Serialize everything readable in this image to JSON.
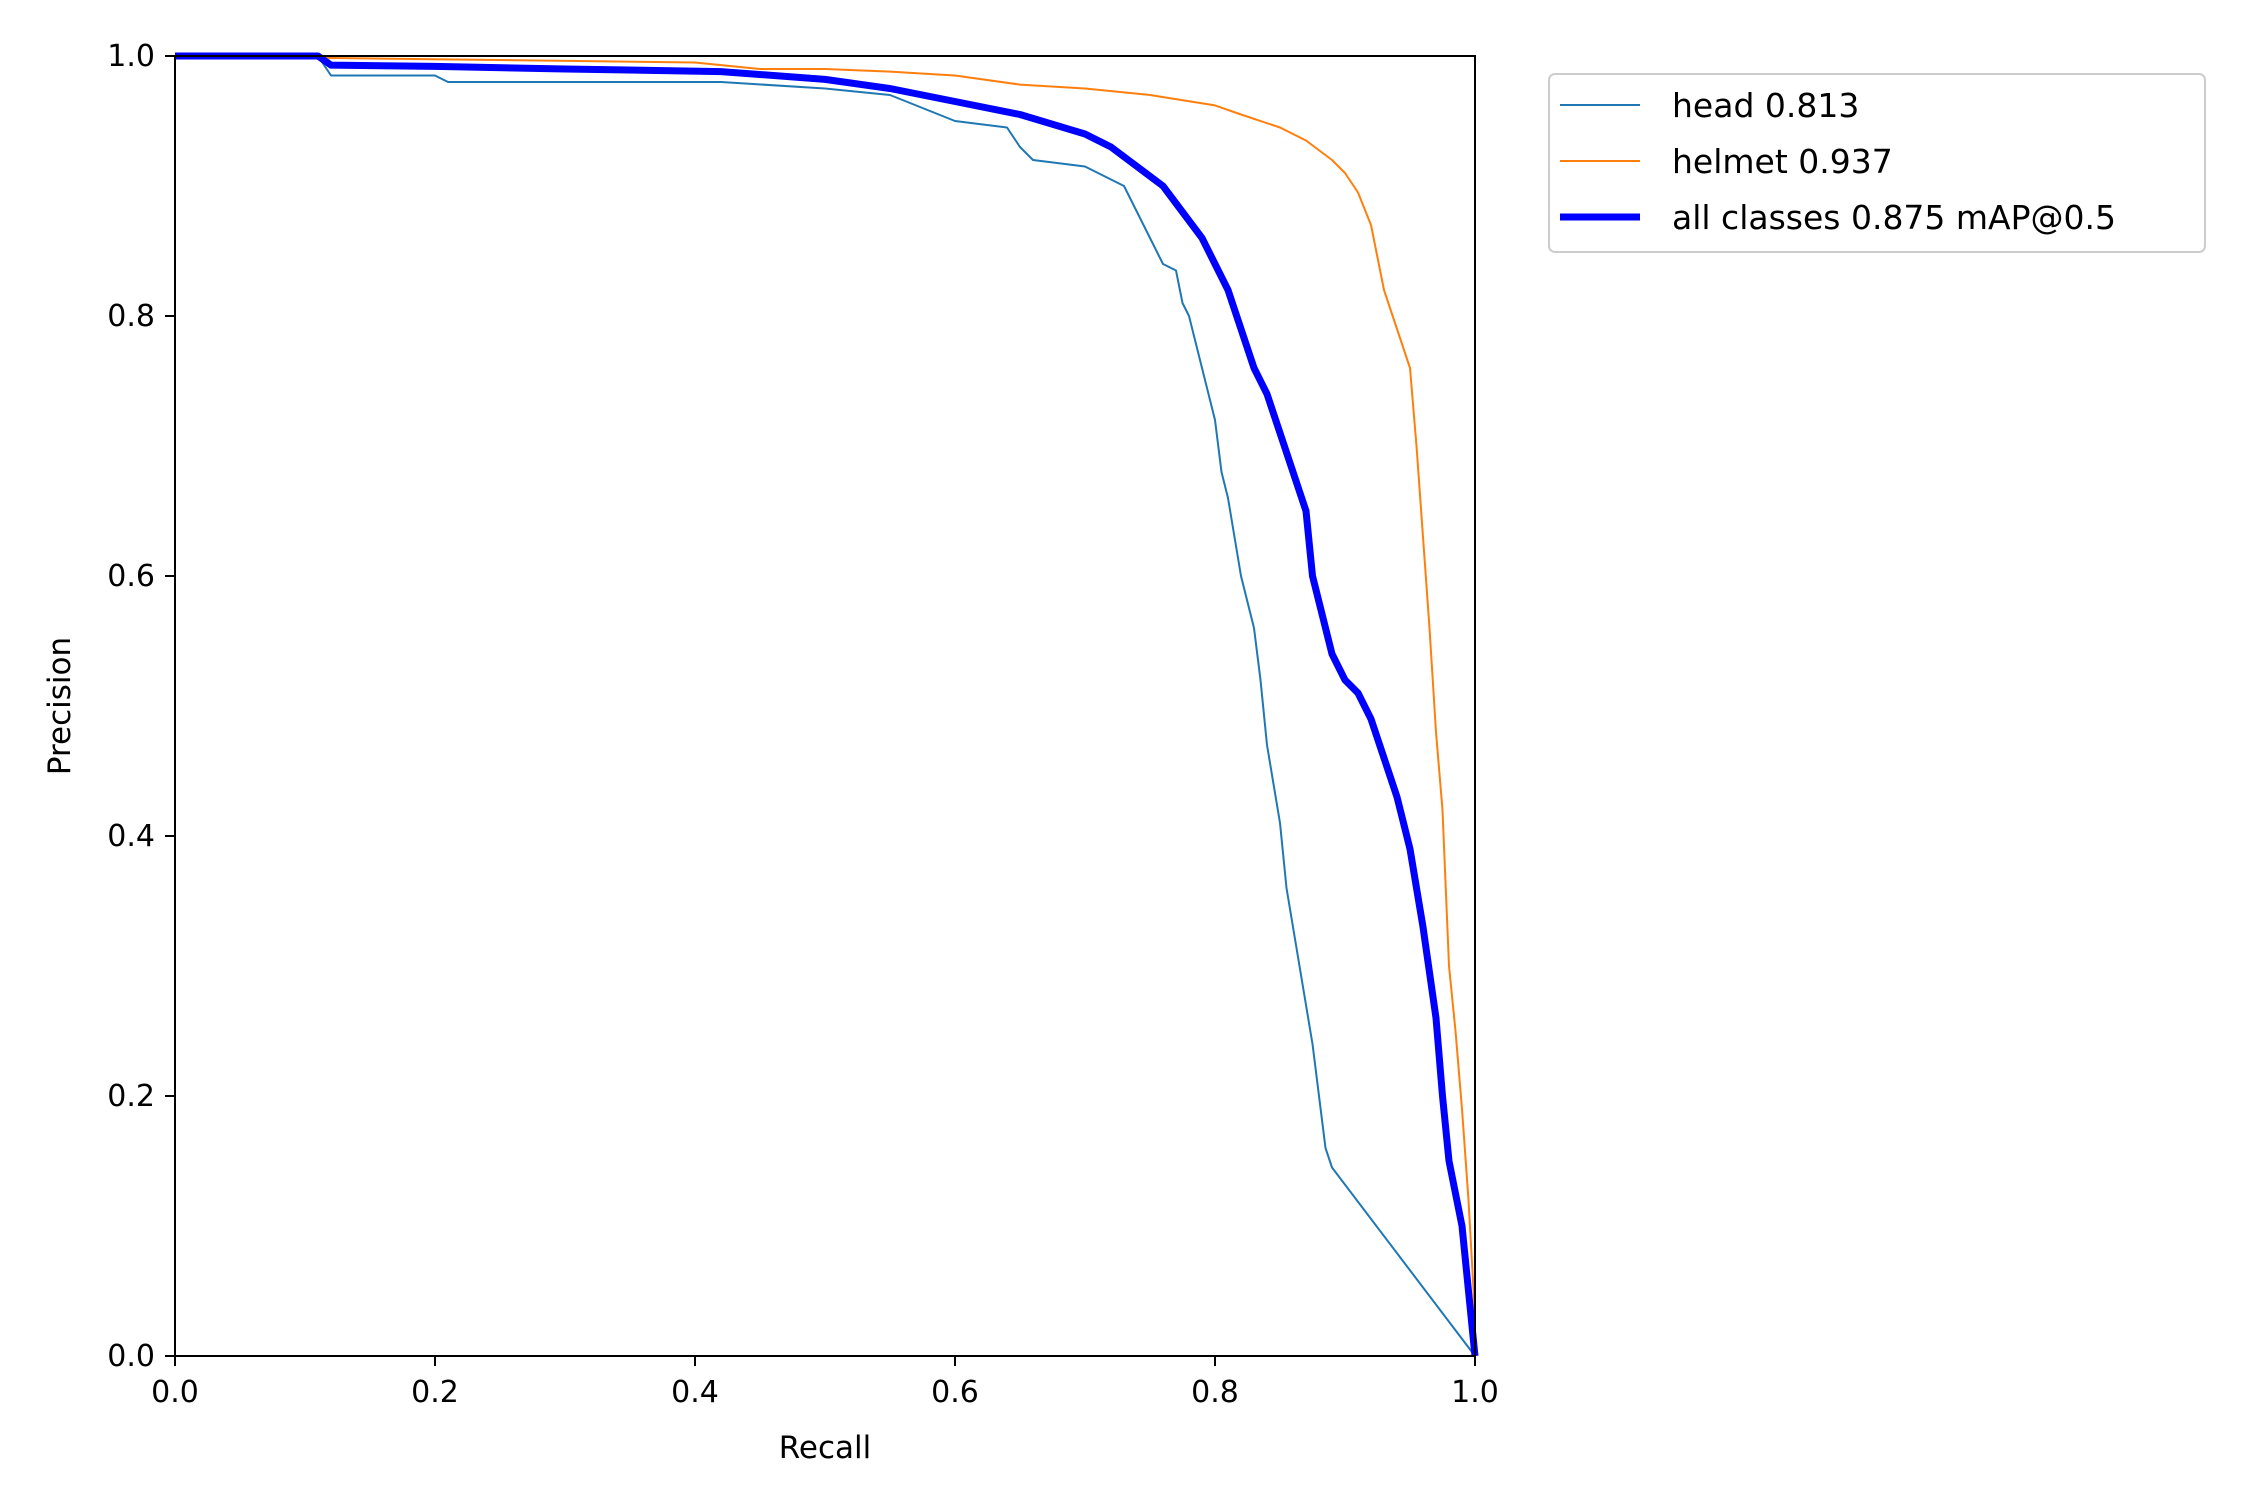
{
  "chart_data": {
    "type": "line",
    "title": "",
    "xlabel": "Recall",
    "ylabel": "Precision",
    "xlim": [
      0.0,
      1.0
    ],
    "ylim": [
      0.0,
      1.0
    ],
    "grid": false,
    "legend_position": "outside-top-right",
    "x_ticks": [
      "0.0",
      "0.2",
      "0.4",
      "0.6",
      "0.8",
      "1.0"
    ],
    "y_ticks": [
      "0.0",
      "0.2",
      "0.4",
      "0.6",
      "0.8",
      "1.0"
    ],
    "series": [
      {
        "name": "head 0.813",
        "color": "#1f77b4",
        "points": [
          [
            0.0,
            1.0
          ],
          [
            0.11,
            1.0
          ],
          [
            0.12,
            0.985
          ],
          [
            0.2,
            0.985
          ],
          [
            0.21,
            0.98
          ],
          [
            0.42,
            0.98
          ],
          [
            0.5,
            0.975
          ],
          [
            0.55,
            0.97
          ],
          [
            0.6,
            0.95
          ],
          [
            0.64,
            0.945
          ],
          [
            0.65,
            0.93
          ],
          [
            0.66,
            0.92
          ],
          [
            0.7,
            0.915
          ],
          [
            0.72,
            0.905
          ],
          [
            0.73,
            0.9
          ],
          [
            0.74,
            0.88
          ],
          [
            0.75,
            0.86
          ],
          [
            0.76,
            0.84
          ],
          [
            0.77,
            0.835
          ],
          [
            0.775,
            0.81
          ],
          [
            0.78,
            0.8
          ],
          [
            0.785,
            0.78
          ],
          [
            0.79,
            0.76
          ],
          [
            0.8,
            0.72
          ],
          [
            0.805,
            0.68
          ],
          [
            0.81,
            0.66
          ],
          [
            0.815,
            0.63
          ],
          [
            0.82,
            0.6
          ],
          [
            0.825,
            0.58
          ],
          [
            0.83,
            0.56
          ],
          [
            0.835,
            0.52
          ],
          [
            0.84,
            0.47
          ],
          [
            0.845,
            0.44
          ],
          [
            0.85,
            0.41
          ],
          [
            0.855,
            0.36
          ],
          [
            0.86,
            0.33
          ],
          [
            0.865,
            0.3
          ],
          [
            0.87,
            0.27
          ],
          [
            0.875,
            0.24
          ],
          [
            0.88,
            0.2
          ],
          [
            0.885,
            0.16
          ],
          [
            0.89,
            0.145
          ],
          [
            1.0,
            0.0
          ]
        ]
      },
      {
        "name": "helmet 0.937",
        "color": "#ff7f0e",
        "points": [
          [
            0.0,
            1.0
          ],
          [
            0.4,
            0.995
          ],
          [
            0.45,
            0.99
          ],
          [
            0.5,
            0.99
          ],
          [
            0.55,
            0.988
          ],
          [
            0.6,
            0.985
          ],
          [
            0.65,
            0.978
          ],
          [
            0.7,
            0.975
          ],
          [
            0.75,
            0.97
          ],
          [
            0.8,
            0.962
          ],
          [
            0.82,
            0.955
          ],
          [
            0.85,
            0.945
          ],
          [
            0.87,
            0.935
          ],
          [
            0.89,
            0.92
          ],
          [
            0.9,
            0.91
          ],
          [
            0.91,
            0.895
          ],
          [
            0.92,
            0.87
          ],
          [
            0.93,
            0.82
          ],
          [
            0.94,
            0.79
          ],
          [
            0.95,
            0.76
          ],
          [
            0.955,
            0.7
          ],
          [
            0.96,
            0.63
          ],
          [
            0.965,
            0.56
          ],
          [
            0.97,
            0.48
          ],
          [
            0.975,
            0.42
          ],
          [
            0.98,
            0.3
          ],
          [
            0.985,
            0.25
          ],
          [
            0.99,
            0.19
          ],
          [
            0.995,
            0.12
          ],
          [
            1.0,
            0.03
          ]
        ]
      },
      {
        "name": "all classes 0.875 mAP@0.5",
        "color": "#0000ff",
        "points": [
          [
            0.0,
            1.0
          ],
          [
            0.11,
            1.0
          ],
          [
            0.12,
            0.993
          ],
          [
            0.2,
            0.992
          ],
          [
            0.3,
            0.99
          ],
          [
            0.42,
            0.988
          ],
          [
            0.5,
            0.982
          ],
          [
            0.55,
            0.975
          ],
          [
            0.6,
            0.965
          ],
          [
            0.65,
            0.955
          ],
          [
            0.7,
            0.94
          ],
          [
            0.72,
            0.93
          ],
          [
            0.74,
            0.915
          ],
          [
            0.76,
            0.9
          ],
          [
            0.775,
            0.88
          ],
          [
            0.79,
            0.86
          ],
          [
            0.8,
            0.84
          ],
          [
            0.81,
            0.82
          ],
          [
            0.82,
            0.79
          ],
          [
            0.83,
            0.76
          ],
          [
            0.84,
            0.74
          ],
          [
            0.85,
            0.71
          ],
          [
            0.86,
            0.68
          ],
          [
            0.87,
            0.65
          ],
          [
            0.875,
            0.6
          ],
          [
            0.88,
            0.58
          ],
          [
            0.89,
            0.54
          ],
          [
            0.9,
            0.52
          ],
          [
            0.91,
            0.51
          ],
          [
            0.92,
            0.49
          ],
          [
            0.93,
            0.46
          ],
          [
            0.94,
            0.43
          ],
          [
            0.95,
            0.39
          ],
          [
            0.96,
            0.33
          ],
          [
            0.97,
            0.26
          ],
          [
            0.975,
            0.2
          ],
          [
            0.98,
            0.15
          ],
          [
            0.99,
            0.1
          ],
          [
            1.0,
            0.0
          ]
        ]
      }
    ]
  }
}
